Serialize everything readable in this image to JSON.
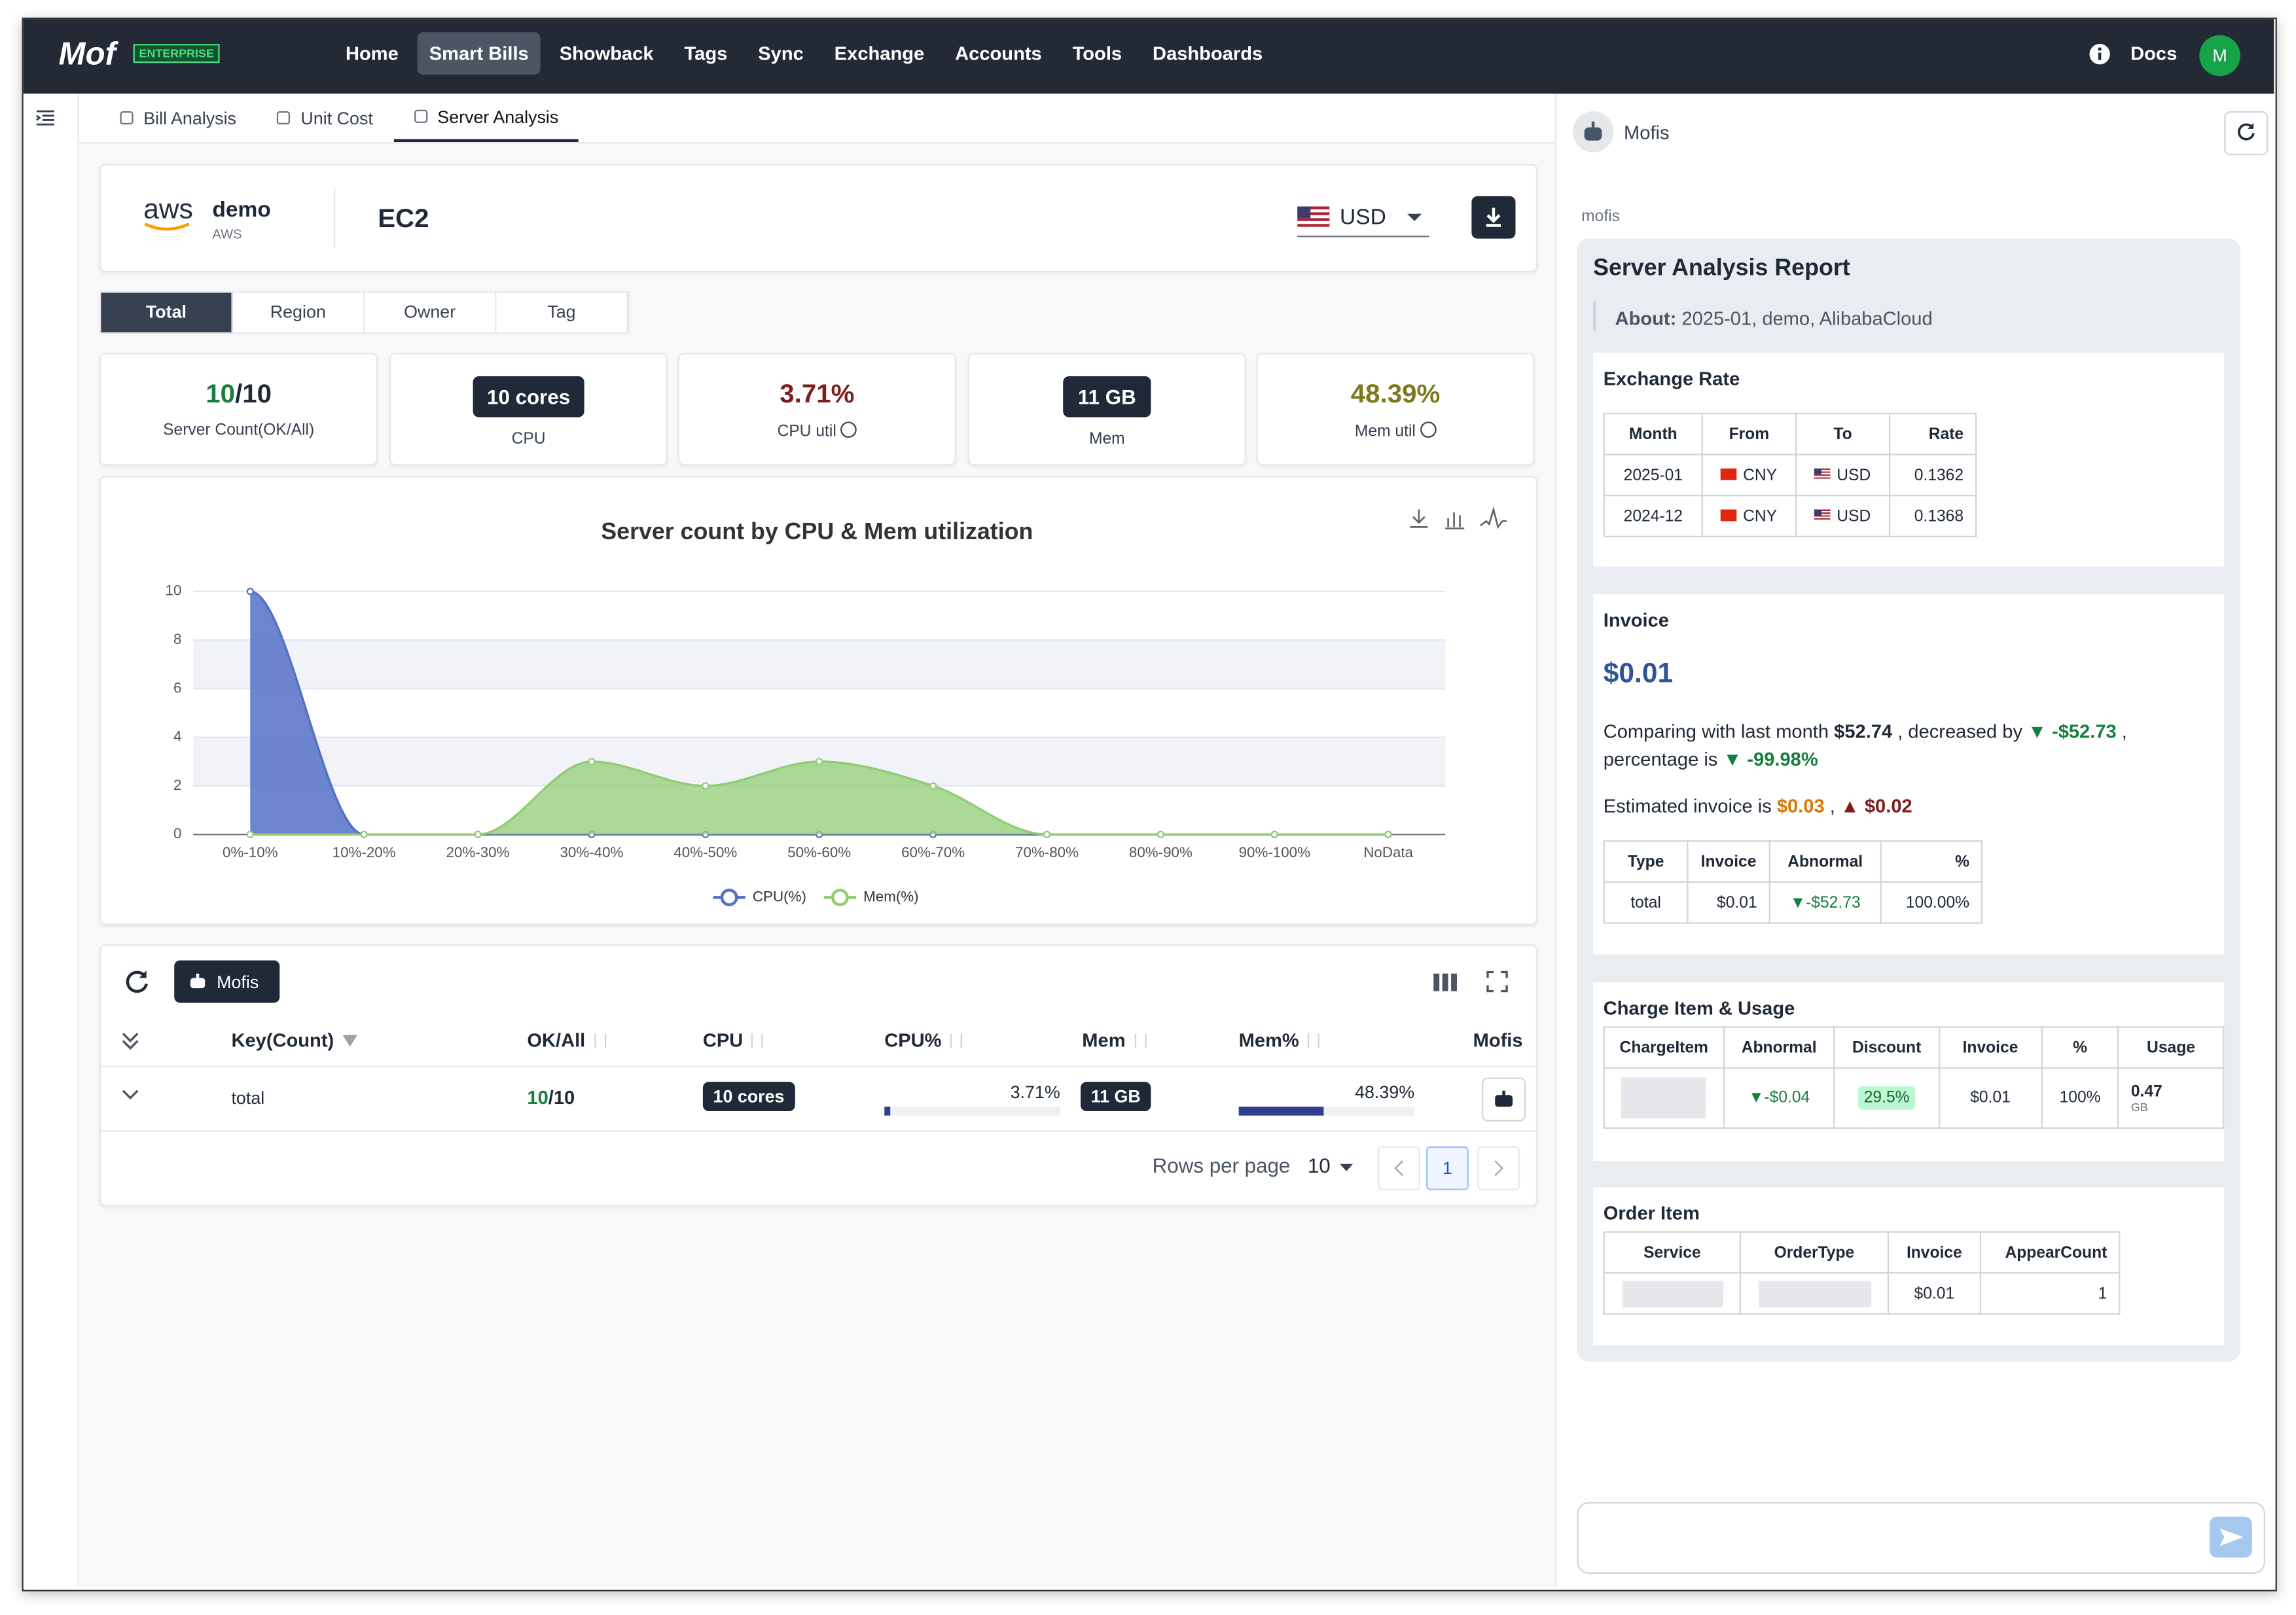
{
  "nav": {
    "logo": "Mof",
    "badge": "ENTERPRISE",
    "items": [
      "Home",
      "Smart Bills",
      "Showback",
      "Tags",
      "Sync",
      "Exchange",
      "Accounts",
      "Tools",
      "Dashboards"
    ],
    "docs": "Docs",
    "avatar": "M"
  },
  "tabs": [
    "Bill Analysis",
    "Unit Cost",
    "Server Analysis"
  ],
  "account": {
    "logo": "aws",
    "name": "demo",
    "provider": "AWS",
    "service": "EC2",
    "currency": "USD"
  },
  "segments": [
    "Total",
    "Region",
    "Owner",
    "Tag"
  ],
  "stats": [
    {
      "value": "10",
      "total": "/10",
      "label": "Server Count(OK/All)"
    },
    {
      "value": "10 cores",
      "label": "CPU"
    },
    {
      "value": "3.71%",
      "label": "CPU util"
    },
    {
      "value": "11 GB",
      "label": "Mem"
    },
    {
      "value": "48.39%",
      "label": "Mem util"
    }
  ],
  "chart_data": {
    "type": "area",
    "title": "Server count by CPU & Mem utilization",
    "categories": [
      "0%-10%",
      "10%-20%",
      "20%-30%",
      "30%-40%",
      "40%-50%",
      "50%-60%",
      "60%-70%",
      "70%-80%",
      "80%-90%",
      "90%-100%",
      "NoData"
    ],
    "series": [
      {
        "name": "CPU(%)",
        "color": "#5470c6",
        "values": [
          10,
          0,
          0,
          0,
          0,
          0,
          0,
          0,
          0,
          0,
          0
        ]
      },
      {
        "name": "Mem(%)",
        "color": "#91cc75",
        "values": [
          0,
          0,
          0,
          3,
          2,
          3,
          2,
          0,
          0,
          0,
          0
        ]
      }
    ],
    "ylim": [
      0,
      10
    ],
    "yticks": [
      0,
      2,
      4,
      6,
      8,
      10
    ],
    "grid": true,
    "legend": "bottom"
  },
  "table": {
    "mofis_button": "Mofis",
    "headers": [
      "Key(Count)",
      "OK/All",
      "CPU",
      "CPU%",
      "Mem",
      "Mem%",
      "Mofis"
    ],
    "row": {
      "key": "total",
      "ok": "10",
      "all": "/10",
      "cpu": "10 cores",
      "cpu_pct": {
        "value": 3.71,
        "label": "3.71%"
      },
      "mem": "11 GB",
      "mem_pct": {
        "value": 48.39,
        "label": "48.39%"
      }
    },
    "rows_per_page": "Rows per page",
    "page_size": "10",
    "page": "1"
  },
  "panel": {
    "title": "Mofis",
    "sender": "mofis",
    "report": {
      "title": "Server Analysis Report",
      "about_label": "About:",
      "about": "2025-01, demo, AlibabaCloud",
      "exchange": {
        "title": "Exchange Rate",
        "headers": [
          "Month",
          "From",
          "To",
          "Rate"
        ],
        "rows": [
          [
            "2025-01",
            "CNY",
            "USD",
            "0.1362"
          ],
          [
            "2024-12",
            "CNY",
            "USD",
            "0.1368"
          ]
        ]
      },
      "invoice": {
        "title": "Invoice",
        "amount": "$0.01",
        "comparison": [
          "Comparing with last month",
          "$52.74",
          ",  decreased by",
          "▼ -$52.73",
          ",",
          "percentage is",
          "▼ -99.98%"
        ],
        "estimate": [
          "Estimated invoice is",
          "$0.03",
          ",",
          "▲ $0.02"
        ],
        "headers": [
          "Type",
          "Invoice",
          "Abnormal",
          "%"
        ],
        "rows": [
          [
            "total",
            "$0.01",
            "▼-$52.73",
            "100.00%"
          ]
        ]
      },
      "charge": {
        "title": "Charge Item & Usage",
        "headers": [
          "ChargeItem",
          "Abnormal",
          "Discount",
          "Invoice",
          "%",
          "Usage"
        ],
        "rows": [
          [
            null,
            "▼-$0.04",
            "29.5%",
            "$0.01",
            "100%",
            "0.47"
          ]
        ],
        "usage_unit": "GB"
      },
      "order": {
        "title": "Order Item",
        "headers": [
          "Service",
          "OrderType",
          "Invoice",
          "AppearCount"
        ],
        "rows": [
          [
            null,
            null,
            "$0.01",
            "1"
          ]
        ]
      }
    }
  }
}
